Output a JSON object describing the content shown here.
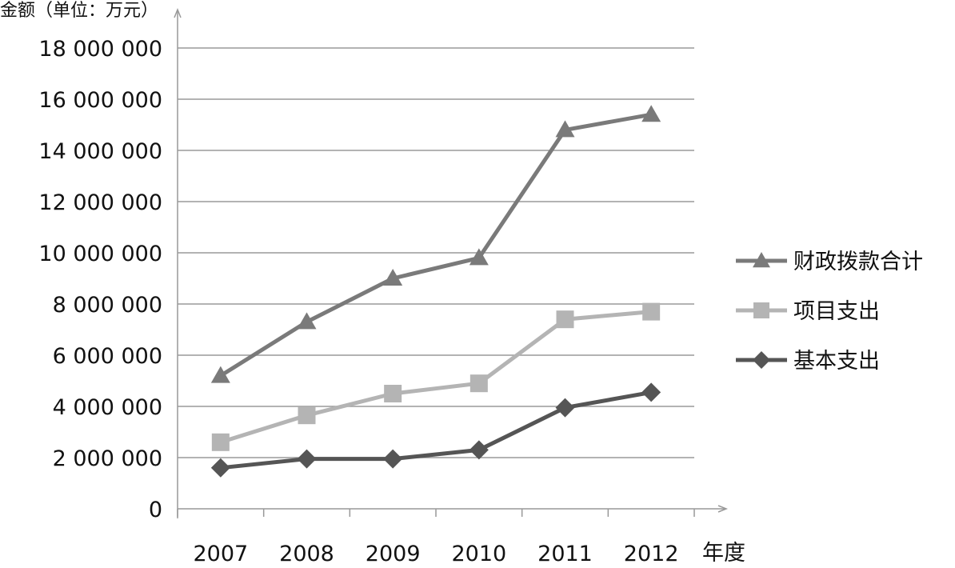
{
  "chart_data": {
    "type": "line",
    "title": "",
    "ylabel": "金额（单位：万元）",
    "xlabel": "年度",
    "categories": [
      "2007",
      "2008",
      "2009",
      "2010",
      "2011",
      "2012"
    ],
    "ylim": [
      0,
      18000000
    ],
    "yticks": [
      0,
      2000000,
      4000000,
      6000000,
      8000000,
      10000000,
      12000000,
      14000000,
      16000000,
      18000000
    ],
    "ytick_labels": [
      "0",
      "2 000 000",
      "4 000 000",
      "6 000 000",
      "8 000 000",
      "10 000 000",
      "12 000 000",
      "14 000 000",
      "16 000 000",
      "18 000 000"
    ],
    "grid": "horizontal",
    "legend_position": "right",
    "series": [
      {
        "name": "财政拨款合计",
        "marker": "triangle",
        "color": "#7a7a7a",
        "values": [
          5200000,
          7300000,
          9000000,
          9800000,
          14800000,
          15400000
        ]
      },
      {
        "name": "项目支出",
        "marker": "square",
        "color": "#b4b4b4",
        "values": [
          2600000,
          3650000,
          4500000,
          4900000,
          7400000,
          7700000
        ]
      },
      {
        "name": "基本支出",
        "marker": "diamond",
        "color": "#555555",
        "values": [
          1600000,
          1950000,
          1950000,
          2300000,
          3950000,
          4550000
        ]
      }
    ]
  }
}
